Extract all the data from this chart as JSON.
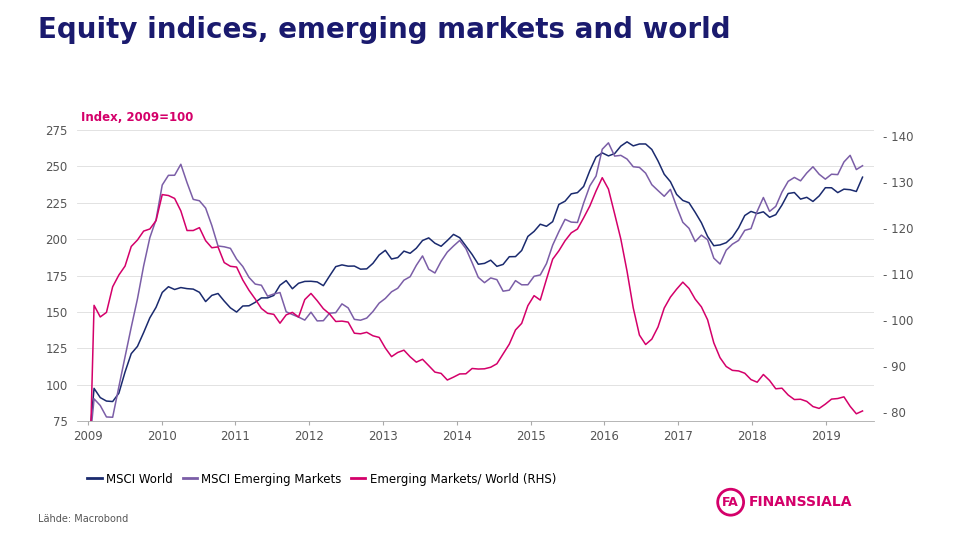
{
  "title": "Equity indices, emerging markets and world",
  "subtitle": "Index, 2009=100",
  "source": "Lähde: Macrobond",
  "title_color": "#1a1a6e",
  "subtitle_color": "#d4006a",
  "background_color": "#ffffff",
  "ylim_left": [
    75,
    290
  ],
  "ylim_right": [
    78,
    146
  ],
  "yticks_left": [
    75,
    100,
    125,
    150,
    175,
    200,
    225,
    250,
    275
  ],
  "yticks_right": [
    80,
    90,
    100,
    110,
    120,
    130,
    140
  ],
  "colors": {
    "msci_world": "#1a2a6e",
    "msci_em": "#7B5EA7",
    "em_world_ratio": "#d4006a"
  },
  "legend": [
    "MSCI World",
    "MSCI Emerging Markets",
    "Emerging Markets/ World (RHS)"
  ],
  "legend_colors": [
    "#1a2a6e",
    "#7B5EA7",
    "#d4006a"
  ],
  "years": [
    2009,
    2010,
    2011,
    2012,
    2013,
    2014,
    2015,
    2016,
    2017,
    2018,
    2019
  ],
  "grid_color": "#dddddd",
  "tick_color": "#555555",
  "spine_color": "#aaaaaa"
}
